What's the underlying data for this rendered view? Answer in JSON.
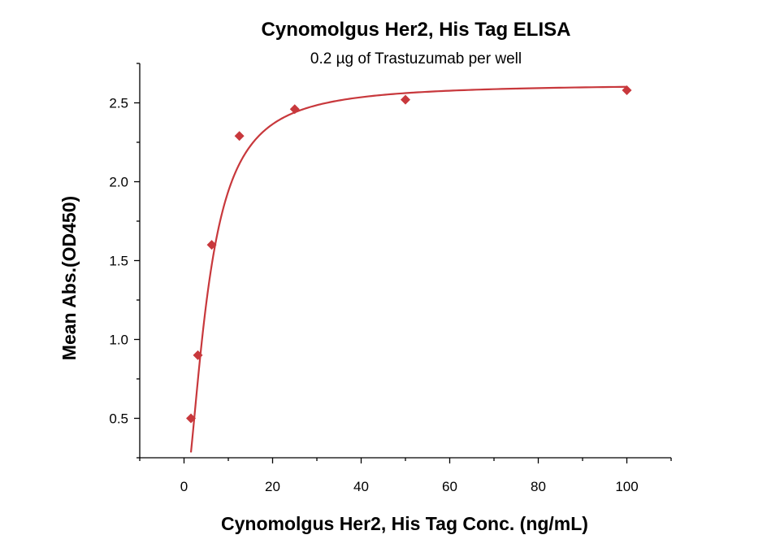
{
  "chart_data": {
    "type": "scatter",
    "title": "Cynomolgus Her2, His Tag ELISA",
    "subtitle": "0.2 µg of Trastuzumab per well",
    "xlabel": "Cynomolgus Her2, His Tag Conc. (ng/mL)",
    "ylabel": "Mean Abs.(OD450)",
    "xlim": [
      -10,
      110
    ],
    "ylim": [
      0.25,
      2.75
    ],
    "x_ticks": [
      0,
      20,
      40,
      60,
      80,
      100
    ],
    "x_tick_labels": [
      "0",
      "20",
      "40",
      "60",
      "80",
      "100"
    ],
    "y_ticks": [
      0.5,
      1.0,
      1.5,
      2.0,
      2.5
    ],
    "y_tick_labels": [
      "0.5",
      "1.0",
      "1.5",
      "2.0",
      "2.5"
    ],
    "grid": false,
    "marker": "diamond",
    "color": "#c8383c",
    "fit_curve": "four-parameter logistic",
    "series": [
      {
        "x": [
          1.5625,
          3.125,
          6.25,
          12.5,
          25,
          50,
          100
        ],
        "y": [
          0.5,
          0.9,
          1.6,
          2.29,
          2.46,
          2.52,
          2.58
        ]
      }
    ]
  }
}
